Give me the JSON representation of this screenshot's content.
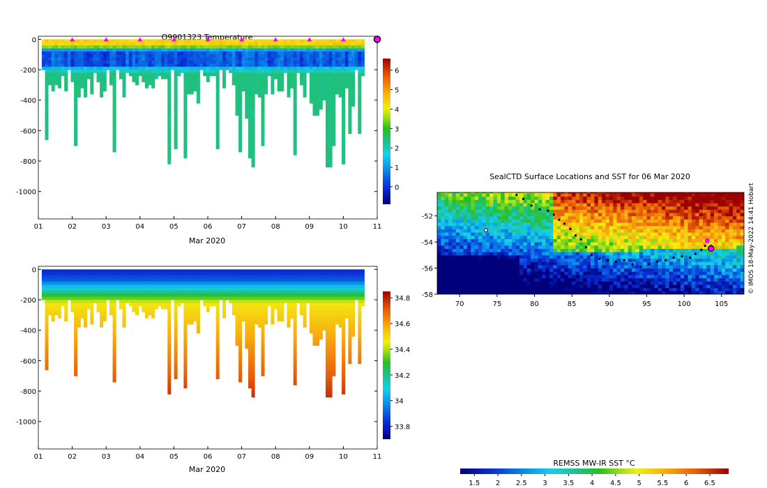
{
  "credit": "© IMOS 18-May-2022 14:41 Hobart",
  "chart_data": [
    {
      "id": "temp",
      "type": "heatmap",
      "title": "Q9901323  Temperature",
      "xlabel": "Mar 2020",
      "ylabel": "",
      "xlim": [
        1,
        11
      ],
      "ylim": [
        -1180,
        20
      ],
      "x_ticks": [
        "01",
        "02",
        "03",
        "04",
        "05",
        "06",
        "07",
        "08",
        "09",
        "10",
        "11"
      ],
      "y_ticks": [
        0,
        -200,
        -400,
        -600,
        -800,
        -1000
      ],
      "colorbar": {
        "min": -0.9,
        "max": 6.6,
        "ticks": [
          0,
          1,
          2,
          3,
          4,
          5,
          6
        ]
      },
      "profile_markers_day": [
        2,
        3,
        4,
        5,
        6,
        7,
        8,
        9,
        10
      ],
      "current_position_day": 11
    },
    {
      "id": "sal",
      "type": "heatmap",
      "title": "",
      "xlabel": "Mar 2020",
      "ylabel": "",
      "xlim": [
        1,
        11
      ],
      "ylim": [
        -1180,
        20
      ],
      "x_ticks": [
        "01",
        "02",
        "03",
        "04",
        "05",
        "06",
        "07",
        "08",
        "09",
        "10",
        "11"
      ],
      "y_ticks": [
        0,
        -200,
        -400,
        -600,
        -800,
        -1000
      ],
      "colorbar": {
        "min": 33.7,
        "max": 34.85,
        "ticks": [
          33.8,
          34,
          34.2,
          34.4,
          34.6,
          34.8
        ]
      }
    },
    {
      "id": "map",
      "type": "heatmap",
      "title": "SealCTD Surface Locations and SST for 06 Mar 2020",
      "xlim": [
        67,
        108
      ],
      "ylim": [
        -58,
        -50.2
      ],
      "x_ticks": [
        70,
        75,
        80,
        85,
        90,
        95,
        100,
        105
      ],
      "y_ticks": [
        -52,
        -54,
        -56,
        -58
      ],
      "colorbar": {
        "label": "REMSS MW-IR SST °C",
        "min": 1.2,
        "max": 6.9,
        "ticks": [
          "1.5",
          "2",
          "2.5",
          "3",
          "3.5",
          "4",
          "4.5",
          "5",
          "5.5",
          "6",
          "6.5"
        ]
      },
      "track": [
        [
          77.6,
          -50.4
        ],
        [
          78.5,
          -50.7
        ],
        [
          79.6,
          -51.2
        ],
        [
          80.7,
          -51.5
        ],
        [
          81.8,
          -51.6
        ],
        [
          82.6,
          -51.9
        ],
        [
          83.3,
          -52.3
        ],
        [
          84.0,
          -52.6
        ],
        [
          84.8,
          -53.0
        ],
        [
          85.5,
          -53.5
        ],
        [
          86.2,
          -53.8
        ],
        [
          86.9,
          -54.4
        ],
        [
          87.6,
          -55.0
        ],
        [
          88.7,
          -55.3
        ],
        [
          89.8,
          -55.4
        ],
        [
          90.9,
          -55.5
        ],
        [
          92.0,
          -55.4
        ],
        [
          93.1,
          -55.7
        ],
        [
          94.2,
          -55.9
        ],
        [
          95.3,
          -55.7
        ],
        [
          96.4,
          -55.5
        ],
        [
          97.5,
          -55.4
        ],
        [
          98.6,
          -55.2
        ],
        [
          99.7,
          -55.1
        ],
        [
          100.8,
          -55.2
        ],
        [
          101.5,
          -54.9
        ],
        [
          102.3,
          -54.6
        ],
        [
          102.8,
          -54.3
        ],
        [
          103.2,
          -54.0
        ],
        [
          103.6,
          -54.3
        ]
      ],
      "current_position": [
        103.6,
        -54.5
      ],
      "last_profile": [
        103.1,
        -53.9
      ],
      "deployment_marker": [
        73.5,
        -53.1
      ]
    }
  ]
}
